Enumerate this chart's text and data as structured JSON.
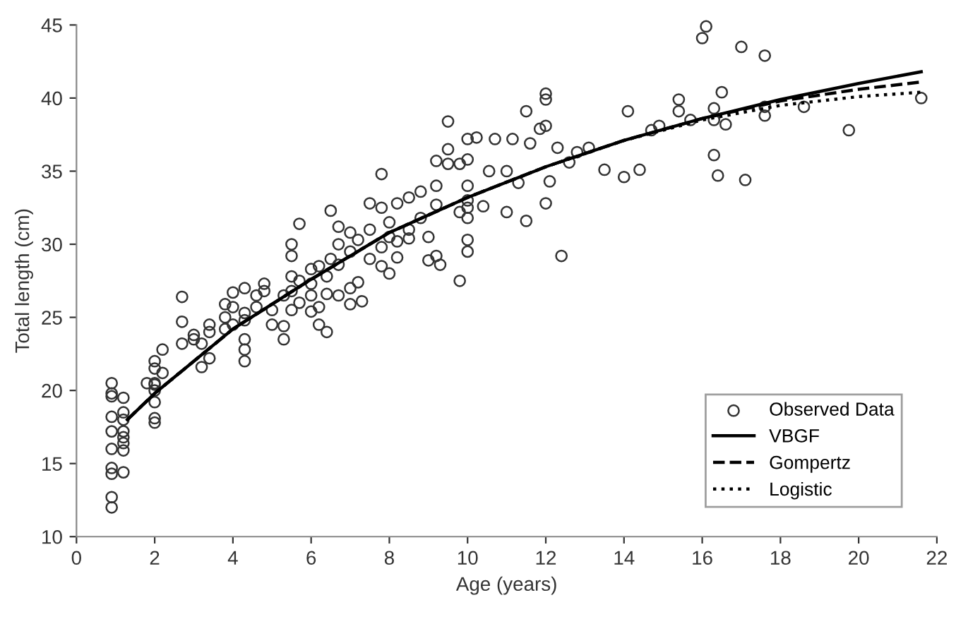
{
  "chart_data": {
    "type": "scatter",
    "xlabel": "Age (years)",
    "ylabel": "Total length (cm)",
    "xlim": [
      0,
      22
    ],
    "ylim": [
      10,
      45
    ],
    "xticks": [
      0,
      2,
      4,
      6,
      8,
      10,
      12,
      14,
      16,
      18,
      20,
      22
    ],
    "yticks": [
      10,
      15,
      20,
      25,
      30,
      35,
      40,
      45
    ],
    "grid": false,
    "legend": "bottom right",
    "series": [
      {
        "name": "Observed Data",
        "marker": "circle",
        "color": "#333333",
        "x": [
          0.9,
          0.9,
          0.9,
          0.9,
          0.9,
          0.9,
          0.9,
          0.9,
          0.9,
          0.9,
          1.2,
          1.2,
          1.2,
          1.2,
          1.2,
          1.2,
          1.2,
          1.2,
          2,
          2,
          2,
          2,
          2,
          2,
          2,
          2,
          2.2,
          2.2,
          1.8,
          2.7,
          2.7,
          2.7,
          3,
          3,
          3.2,
          3.2,
          3.4,
          3.4,
          3.4,
          3.8,
          3.8,
          3.8,
          4,
          4,
          4,
          4.3,
          4.3,
          4.3,
          4.3,
          4.3,
          4.3,
          4.6,
          4.6,
          4.8,
          4.8,
          5,
          5,
          5.3,
          5.3,
          5.3,
          5.5,
          5.5,
          5.5,
          5.5,
          5.5,
          5.7,
          5.7,
          5.7,
          6,
          6,
          6,
          6,
          6.2,
          6.2,
          6.2,
          6.4,
          6.4,
          6.4,
          6.5,
          6.5,
          6.7,
          6.7,
          6.7,
          6.7,
          7,
          7,
          7,
          7,
          7.2,
          7.2,
          7.3,
          7.5,
          7.5,
          7.5,
          7.8,
          7.8,
          7.8,
          7.8,
          8,
          8,
          8,
          8.2,
          8.2,
          8.2,
          8.5,
          8.5,
          8.5,
          8.8,
          8.8,
          9,
          9,
          9.2,
          9.2,
          9.2,
          9.2,
          9.3,
          9.5,
          9.5,
          9.5,
          9.8,
          9.8,
          9.8,
          10,
          10,
          10,
          10,
          10,
          10,
          10,
          10,
          10.23,
          10.7,
          11.15,
          11.5,
          12.0,
          12.0,
          11.85,
          12.0,
          11.6,
          12.3,
          12.8,
          13.1,
          12.6,
          11.3,
          10.55,
          11.0,
          10.4,
          11.0,
          11.5,
          12.0,
          12.1,
          12.4,
          13.5,
          14.0,
          14.4,
          14.1,
          14.7,
          14.9,
          15.4,
          15.4,
          15.7,
          16.0,
          16.1,
          17.0,
          17.6,
          16.5,
          16.3,
          16.3,
          16.6,
          16.3,
          16.4,
          17.1,
          17.6,
          17.6,
          18.6,
          19.75,
          21.6
        ],
        "values": [
          12,
          12.7,
          14.3,
          14.7,
          16,
          17.2,
          18.2,
          19.8,
          20.5,
          19.6,
          14.4,
          15.9,
          16.4,
          17.2,
          18,
          18.5,
          19.5,
          16.8,
          17.8,
          18.1,
          19.2,
          20,
          20.5,
          21.5,
          22,
          20.4,
          22.8,
          21.2,
          20.5,
          23.2,
          24.7,
          26.4,
          23.5,
          23.8,
          21.6,
          23.2,
          22.2,
          24.5,
          24,
          24.2,
          25.9,
          25,
          26.7,
          25.7,
          24.5,
          27,
          22,
          22.8,
          23.5,
          24.8,
          25.3,
          25.7,
          26.5,
          27.3,
          26.8,
          25.5,
          24.5,
          23.5,
          24.4,
          26.5,
          30,
          29.2,
          27.8,
          26.8,
          25.5,
          31.4,
          27.5,
          26,
          28.3,
          27.3,
          26.5,
          25.4,
          28.5,
          25.7,
          24.5,
          24,
          26.6,
          27.8,
          32.3,
          29,
          31.2,
          30,
          28.6,
          26.5,
          30.8,
          29.5,
          27,
          25.9,
          30.3,
          27.4,
          26.1,
          32.8,
          31,
          29,
          34.8,
          32.5,
          29.8,
          28.5,
          28,
          30.5,
          31.5,
          32.8,
          30.2,
          29.1,
          33.2,
          31,
          30.4,
          33.6,
          31.8,
          28.9,
          30.5,
          35.7,
          34,
          32.7,
          29.2,
          28.6,
          38.4,
          36.5,
          35.5,
          27.5,
          32.2,
          35.5,
          37.2,
          34,
          33,
          32.5,
          31.8,
          30.3,
          29.5,
          35.8,
          37.3,
          37.2,
          37.2,
          39.1,
          40.3,
          39.9,
          37.9,
          38.1,
          36.9,
          36.6,
          36.3,
          36.6,
          35.6,
          34.2,
          35.0,
          35.0,
          32.6,
          32.2,
          31.6,
          32.8,
          34.3,
          29.2,
          35.1,
          34.6,
          35.1,
          39.1,
          37.8,
          38.1,
          39.9,
          39.1,
          38.5,
          44.1,
          44.9,
          43.5,
          42.9,
          40.4,
          39.3,
          38.5,
          38.2,
          36.1,
          34.7,
          34.4,
          38.8,
          39.4,
          39.4,
          37.8,
          40.0
        ]
      },
      {
        "name": "VBGF",
        "type": "line",
        "line_style": "solid",
        "color": "#000000",
        "x": [
          1.3,
          2,
          4,
          6,
          8,
          10,
          12,
          14,
          16,
          18,
          20,
          21.6
        ],
        "values": [
          18,
          19.8,
          24.2,
          27.6,
          30.8,
          33.2,
          35.3,
          37.1,
          38.6,
          39.9,
          41.0,
          41.8
        ]
      },
      {
        "name": "Gompertz",
        "type": "line",
        "line_style": "dashed",
        "color": "#000000",
        "x": [
          1.3,
          2,
          4,
          6,
          8,
          10,
          12,
          14,
          16,
          18,
          20,
          21.6
        ],
        "values": [
          18,
          19.8,
          24.2,
          27.6,
          30.8,
          33.2,
          35.3,
          37.1,
          38.6,
          39.8,
          40.6,
          41.1
        ]
      },
      {
        "name": "Logistic",
        "type": "line",
        "line_style": "dotted",
        "color": "#000000",
        "x": [
          1.3,
          2,
          4,
          6,
          8,
          10,
          12,
          14,
          16,
          18,
          20,
          21.6
        ],
        "values": [
          18,
          19.8,
          24.2,
          27.6,
          30.8,
          33.2,
          35.3,
          37.1,
          38.5,
          39.5,
          40.1,
          40.4
        ]
      }
    ]
  }
}
